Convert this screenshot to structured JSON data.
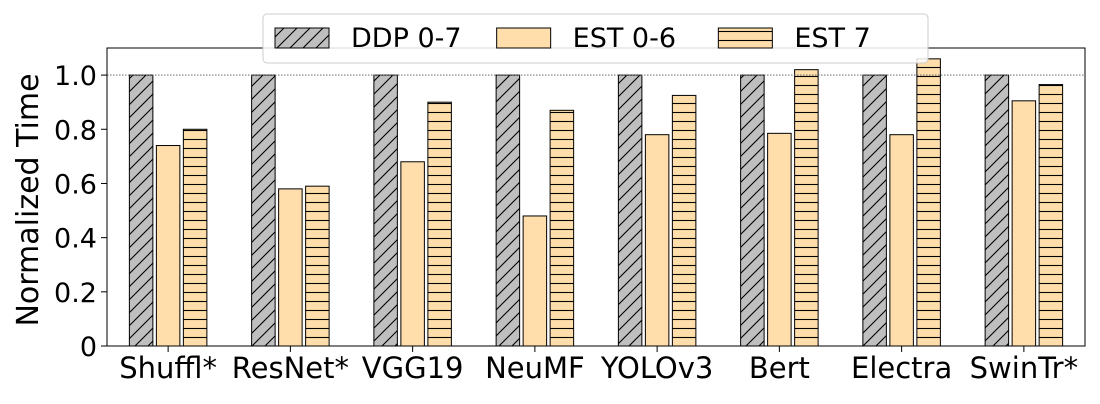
{
  "chart_data": {
    "type": "bar",
    "ylabel": "Normalized Time",
    "xlabel": "",
    "ylim": [
      0,
      1.1
    ],
    "yticks": [
      0,
      0.2,
      0.4,
      0.6,
      0.8,
      1.0
    ],
    "ytick_labels": [
      "0",
      "0.2",
      "0.4",
      "0.6",
      "0.8",
      "1.0"
    ],
    "reference_line": 1.0,
    "grid": false,
    "legend_position": "top-center",
    "categories": [
      "Shuffl*",
      "ResNet*",
      "VGG19",
      "NeuMF",
      "YOLOv3",
      "Bert",
      "Electra",
      "SwinTr*"
    ],
    "series": [
      {
        "name": "DDP 0-7",
        "values": [
          1.0,
          1.0,
          1.0,
          1.0,
          1.0,
          1.0,
          1.0,
          1.0
        ],
        "color": "#bfbfbf",
        "hatch": "diagonal"
      },
      {
        "name": "EST 0-6",
        "values": [
          0.74,
          0.58,
          0.68,
          0.48,
          0.78,
          0.785,
          0.78,
          0.905
        ],
        "color": "#ffdeab",
        "hatch": "none"
      },
      {
        "name": "EST 7",
        "values": [
          0.8,
          0.59,
          0.9,
          0.87,
          0.925,
          1.02,
          1.06,
          0.965
        ],
        "color": "#ffdeab",
        "hatch": "horizontal"
      }
    ]
  }
}
